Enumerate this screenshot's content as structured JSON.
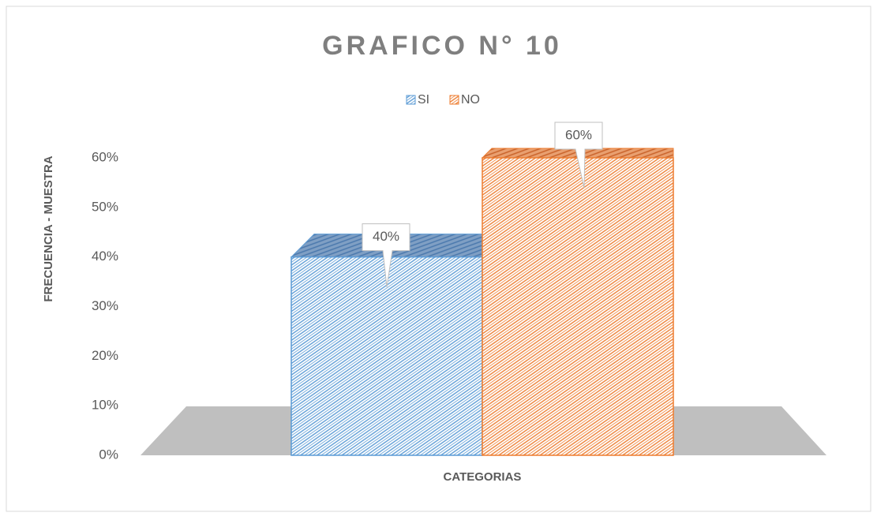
{
  "chart_data": {
    "type": "bar",
    "title": "GRAFICO N° 10",
    "x_label": "CATEGORIAS",
    "y_label": "FRECUENCIA - MUESTRA",
    "categories": [
      null
    ],
    "series": [
      {
        "name": "SI",
        "color": "#5b9bd5",
        "values": [
          40
        ],
        "value_labels": [
          "40%"
        ]
      },
      {
        "name": "NO",
        "color": "#ed7d31",
        "values": [
          60
        ],
        "value_labels": [
          "60%"
        ]
      }
    ],
    "ylim": [
      0,
      60
    ],
    "yticks": [
      {
        "value": 0,
        "label": "0%"
      },
      {
        "value": 10,
        "label": "10%"
      },
      {
        "value": 20,
        "label": "20%"
      },
      {
        "value": 30,
        "label": "30%"
      },
      {
        "value": 40,
        "label": "40%"
      },
      {
        "value": 50,
        "label": "50%"
      },
      {
        "value": 60,
        "label": "60%"
      }
    ],
    "legend": "top",
    "grid": false
  }
}
